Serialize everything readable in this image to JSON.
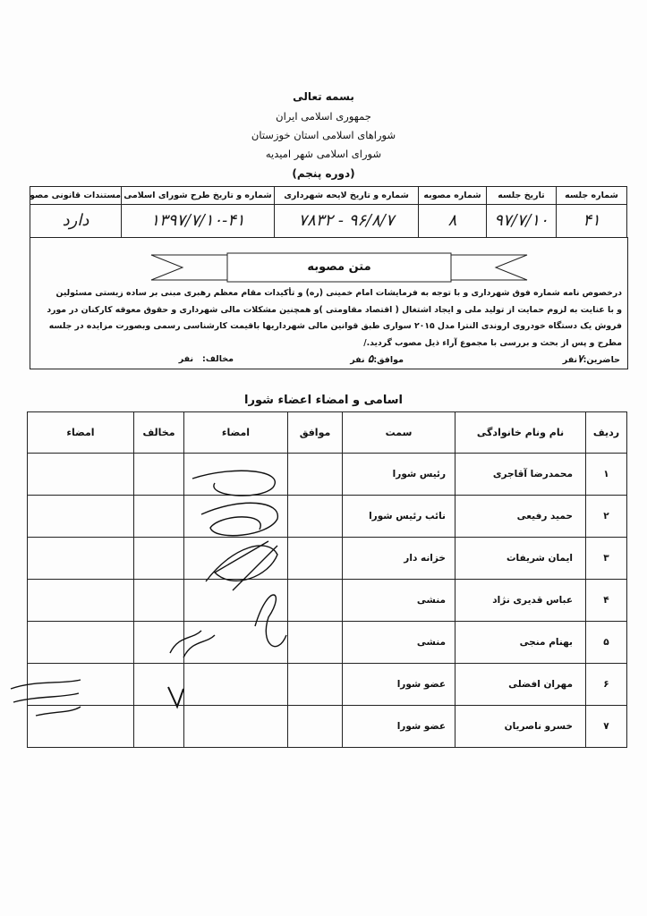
{
  "header": {
    "basmala": "بسمه تعالی",
    "line1": "جمهوری اسلامی ایران",
    "line2": "شوراهای اسلامی استان خوزستان",
    "line3": "شورای اسلامی شهر امیدیه",
    "period": "(دوره پنجم)"
  },
  "info_table": {
    "headers": [
      "شماره جلسه",
      "تاریخ جلسه",
      "شماره مصوبه",
      "شماره و تاریخ  لایحه شهرداری",
      "شماره و تاریخ طرح شورای اسلامی",
      "مستندات قانونی مصوبه"
    ],
    "values": [
      "۴۱",
      "۹۷/۷/۱۰",
      "۸",
      "۹۶/۸/۷ - ۷۸۳۲",
      "۱۳۹۷/۷/۱۰-۴۱",
      "دارد"
    ]
  },
  "resolution": {
    "title": "متن مصوبه",
    "lines": [
      "درخصوص نامه شماره فوق شهرداری و با توجه به فرمایشات امام خمینی (ره) و تأکیدات مقام معظم رهبری مبنی بر ساده زیستی مسئولین",
      "و با عنایت به لزوم حمایت از تولید ملی و ایجاد اشتغال ( اقتصاد مقاومتی )و همچنین مشکلات مالی شهرداری و حقوق معوقه کارکنان در مورد",
      "فروش یک دستگاه خودروی اروندی النترا مدل ۲۰۱۵ سواری طبق قوانین مالی شهرداریها باقیمت کارشناسی رسمی وبصورت مزایده در جلسه",
      "مطرح و پس از بحث و بررسی با مجموع آراء ذیل مصوب گردید./"
    ],
    "present_label": "حاضرین:",
    "present_value": "۷",
    "agree_label": "موافق:",
    "agree_value": "۵",
    "oppose_label": "مخالف:",
    "oppose_value": "",
    "unit": "نفر"
  },
  "members": {
    "title": "اسامی و امضاء اعضاء شورا",
    "headers": [
      "ردیف",
      "نام ونام خانوادگی",
      "سمت",
      "موافق",
      "امضاء",
      "مخالف",
      "امضاء"
    ],
    "rows": [
      {
        "no": "۱",
        "name": "محمدرضا آقاجری",
        "position": "رئیس شورا",
        "signed": true,
        "oppose": false
      },
      {
        "no": "۲",
        "name": "حمید رفیعی",
        "position": "نائب رئیس شورا",
        "signed": true,
        "oppose": false
      },
      {
        "no": "۳",
        "name": "ایمان شریفات",
        "position": "خزانه دار",
        "signed": true,
        "oppose": false
      },
      {
        "no": "۴",
        "name": "عباس قدیری نژاد",
        "position": "منشی",
        "signed": true,
        "oppose": false
      },
      {
        "no": "۵",
        "name": "بهنام منجی",
        "position": "منشی",
        "signed": true,
        "oppose": false
      },
      {
        "no": "۶",
        "name": "مهران افضلی",
        "position": "عضو شورا",
        "signed": false,
        "oppose": true
      },
      {
        "no": "۷",
        "name": "خسرو ناصریان",
        "position": "عضو شورا",
        "signed": false,
        "oppose": false
      }
    ]
  }
}
